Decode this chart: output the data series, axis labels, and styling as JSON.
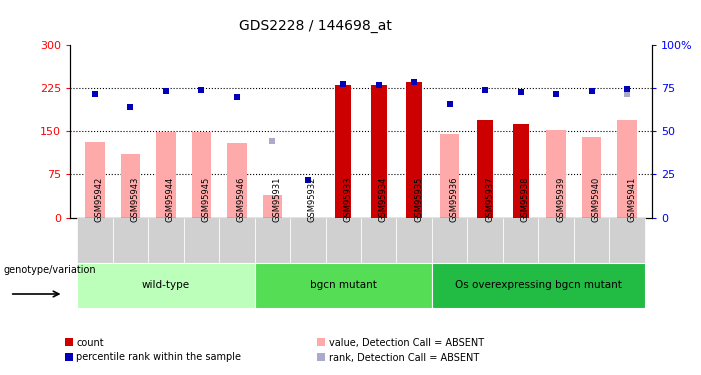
{
  "title": "GDS2228 / 144698_at",
  "samples": [
    "GSM95942",
    "GSM95943",
    "GSM95944",
    "GSM95945",
    "GSM95946",
    "GSM95931",
    "GSM95932",
    "GSM95933",
    "GSM95934",
    "GSM95935",
    "GSM95936",
    "GSM95937",
    "GSM95938",
    "GSM95939",
    "GSM95940",
    "GSM95941"
  ],
  "groups": [
    {
      "name": "wild-type",
      "indices": [
        0,
        1,
        2,
        3,
        4
      ],
      "color": "#bbffbb"
    },
    {
      "name": "bgcn mutant",
      "indices": [
        5,
        6,
        7,
        8,
        9
      ],
      "color": "#55dd55"
    },
    {
      "name": "Os overexpressing bgcn mutant",
      "indices": [
        10,
        11,
        12,
        13,
        14,
        15
      ],
      "color": "#22bb44"
    }
  ],
  "count_values": [
    null,
    null,
    null,
    null,
    null,
    null,
    null,
    230,
    230,
    235,
    null,
    170,
    163,
    null,
    null,
    null
  ],
  "percentile_values": [
    215,
    193,
    220,
    221,
    210,
    null,
    65,
    232,
    230,
    235,
    198,
    222,
    218,
    215,
    220,
    224
  ],
  "value_absent": [
    132,
    110,
    148,
    148,
    130,
    40,
    null,
    null,
    null,
    null,
    145,
    null,
    null,
    152,
    140,
    170
  ],
  "rank_absent": [
    215,
    193,
    220,
    221,
    210,
    133,
    65,
    null,
    null,
    null,
    198,
    222,
    218,
    215,
    220,
    215
  ],
  "ylim_left": [
    0,
    300
  ],
  "ylim_right": [
    0,
    100
  ],
  "yticks_left": [
    0,
    75,
    150,
    225,
    300
  ],
  "yticks_right": [
    0,
    25,
    50,
    75,
    100
  ],
  "count_color": "#cc0000",
  "percentile_color": "#0000bb",
  "value_absent_color": "#ffaaaa",
  "rank_absent_color": "#aaaacc",
  "legend_items": [
    {
      "label": "count",
      "color": "#cc0000"
    },
    {
      "label": "percentile rank within the sample",
      "color": "#0000bb"
    },
    {
      "label": "value, Detection Call = ABSENT",
      "color": "#ffaaaa"
    },
    {
      "label": "rank, Detection Call = ABSENT",
      "color": "#aaaacc"
    }
  ]
}
